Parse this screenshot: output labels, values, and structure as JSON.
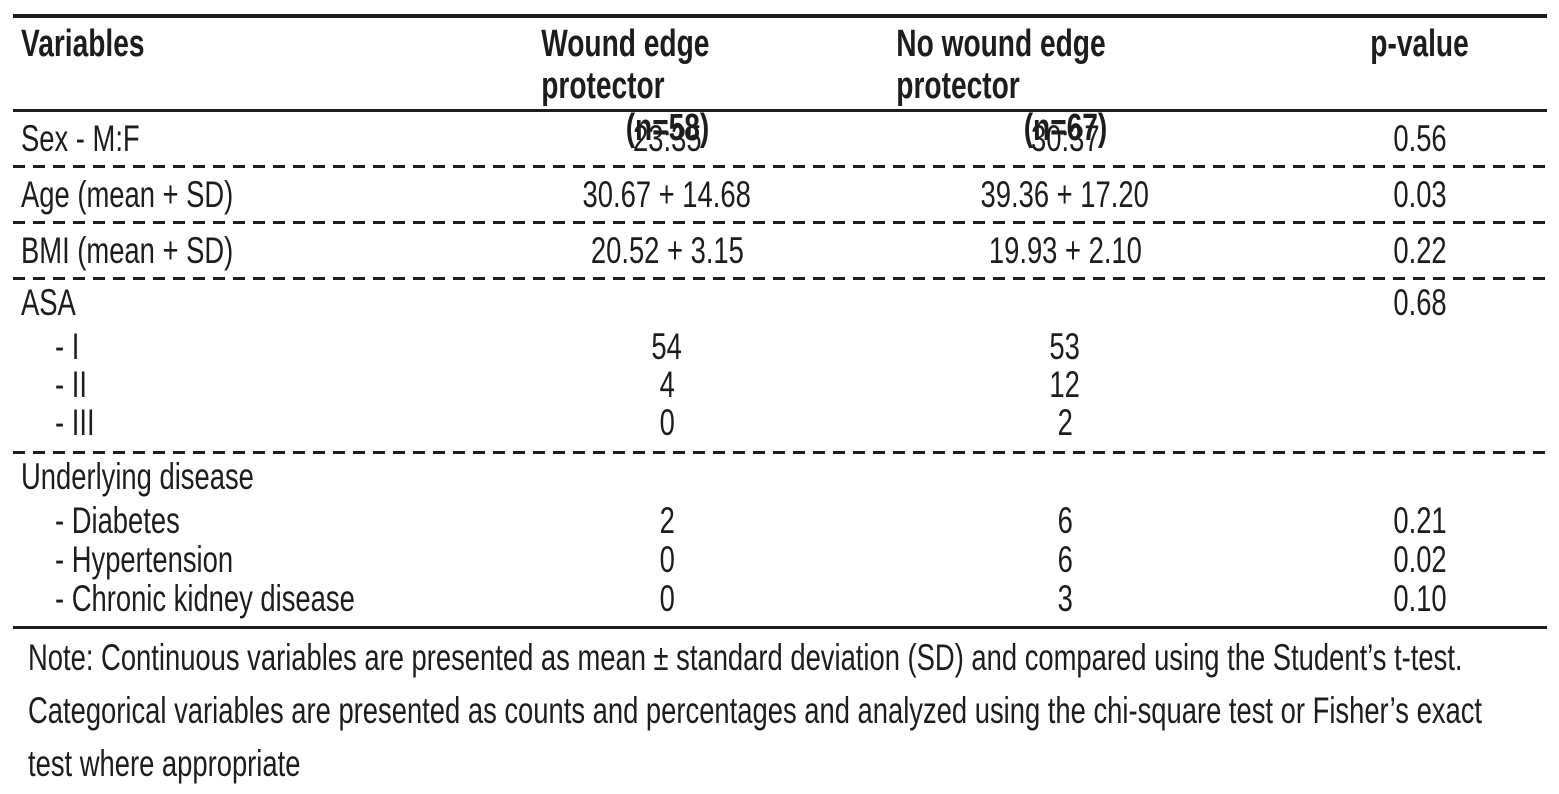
{
  "table": {
    "columns": [
      {
        "label": "Variables",
        "sub": ""
      },
      {
        "label": "Wound edge protector",
        "sub": "(n=58)"
      },
      {
        "label": "No wound edge protector",
        "sub": "(n=67)"
      },
      {
        "label": "p-value",
        "sub": ""
      }
    ],
    "rows": [
      {
        "label": "Sex - M:F",
        "wep": "23:35",
        "nwep": "30:37",
        "p": "0.56",
        "indent": false
      },
      {
        "label": "Age (mean + SD)",
        "wep": "30.67 + 14.68",
        "nwep": "39.36 + 17.20",
        "p": "0.03",
        "indent": false
      },
      {
        "label": "BMI (mean + SD)",
        "wep": "20.52 + 3.15",
        "nwep": "19.93 + 2.10",
        "p": "0.22",
        "indent": false
      },
      {
        "label": "ASA",
        "wep": "",
        "nwep": "",
        "p": "0.68",
        "indent": false
      },
      {
        "label": "- I",
        "wep": "54",
        "nwep": "53",
        "p": "",
        "indent": true
      },
      {
        "label": "- II",
        "wep": "4",
        "nwep": "12",
        "p": "",
        "indent": true
      },
      {
        "label": "- III",
        "wep": "0",
        "nwep": "2",
        "p": "",
        "indent": true
      },
      {
        "label": "Underlying disease",
        "wep": "",
        "nwep": "",
        "p": "",
        "indent": false
      },
      {
        "label": "- Diabetes",
        "wep": "2",
        "nwep": "6",
        "p": "0.21",
        "indent": true
      },
      {
        "label": "- Hypertension",
        "wep": "0",
        "nwep": "6",
        "p": "0.02",
        "indent": true
      },
      {
        "label": "- Chronic kidney disease",
        "wep": "0",
        "nwep": "3",
        "p": "0.10",
        "indent": true
      }
    ]
  },
  "note": {
    "lines": [
      "Note: Continuous variables are presented as mean ± standard deviation (SD) and compared using the Student’s t-test.",
      "Categorical variables are presented as counts and percentages and analyzed using the chi-square test or Fisher’s exact",
      "test where appropriate"
    ]
  },
  "colors": {
    "ink": "#1d1d1d",
    "background": "#ffffff"
  }
}
